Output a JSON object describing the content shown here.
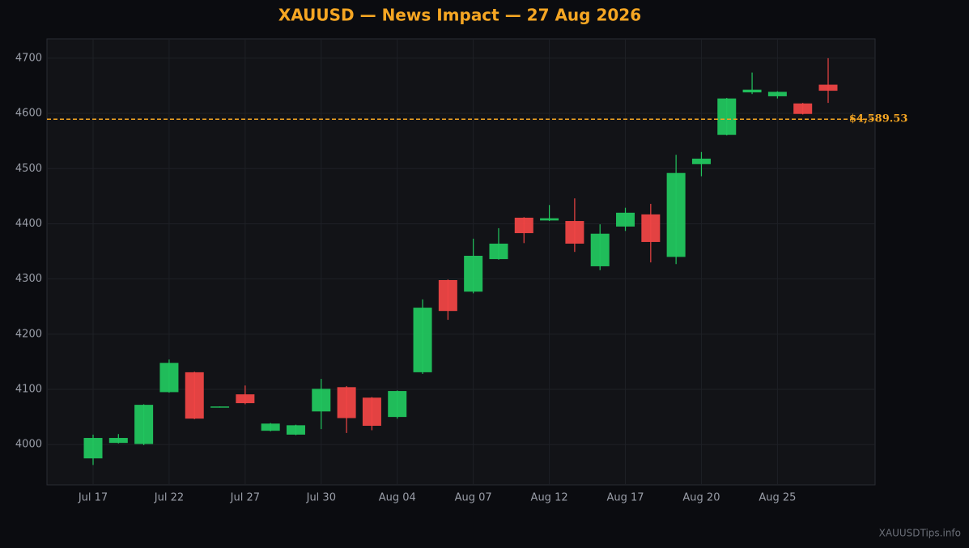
{
  "chart_data": {
    "type": "candlestick",
    "title": "XAUUSD — News Impact — 27 Aug 2026",
    "categories": [
      "Jul 17",
      null,
      null,
      "Jul 22",
      null,
      null,
      "Jul 27",
      null,
      null,
      "Jul 30",
      null,
      null,
      "Aug 04",
      null,
      null,
      "Aug 07",
      null,
      null,
      "Aug 12",
      null,
      null,
      "Aug 17",
      null,
      null,
      "Aug 20",
      null,
      null,
      "Aug 25",
      null,
      null
    ],
    "open": [
      3975,
      4003,
      4001,
      4095,
      4131,
      4067,
      4091,
      4025,
      4018,
      4060,
      4104,
      4085,
      4050,
      4131,
      4298,
      4277,
      4336,
      4411,
      4406,
      4405,
      4323,
      4395,
      4417,
      4340,
      4508,
      4561,
      4638,
      4631,
      4618,
      4652
    ],
    "high": [
      4018,
      4019,
      4073,
      4154,
      4132,
      4069,
      4107,
      4039,
      4036,
      4119,
      4106,
      4086,
      4098,
      4263,
      4299,
      4373,
      4392,
      4412,
      4434,
      4446,
      4399,
      4429,
      4436,
      4525,
      4530,
      4628,
      4674,
      4640,
      4619,
      4700
    ],
    "low": [
      3963,
      4002,
      3999,
      4094,
      4046,
      4067,
      4073,
      4024,
      4017,
      4028,
      4021,
      4026,
      4047,
      4128,
      4226,
      4274,
      4335,
      4365,
      4405,
      4349,
      4316,
      4387,
      4330,
      4327,
      4486,
      4560,
      4635,
      4627,
      4598,
      4619
    ],
    "close": [
      4012,
      4012,
      4072,
      4148,
      4047,
      4069,
      4075,
      4038,
      4035,
      4101,
      4048,
      4034,
      4097,
      4248,
      4242,
      4342,
      4364,
      4383,
      4410,
      4364,
      4382,
      4420,
      4367,
      4492,
      4518,
      4627,
      4643,
      4639,
      4599,
      4641
    ],
    "up_color": "#22c55e",
    "down_color": "#ef4444",
    "ylim": [
      3927,
      4735
    ],
    "yticks": [
      4000,
      4100,
      4200,
      4300,
      4400,
      4500,
      4600,
      4700
    ],
    "grid": true,
    "price_line": {
      "value": 4589.53,
      "label": "$4,589.53",
      "color": "#f5a623"
    },
    "watermark": "XAUUSDTips.info"
  }
}
